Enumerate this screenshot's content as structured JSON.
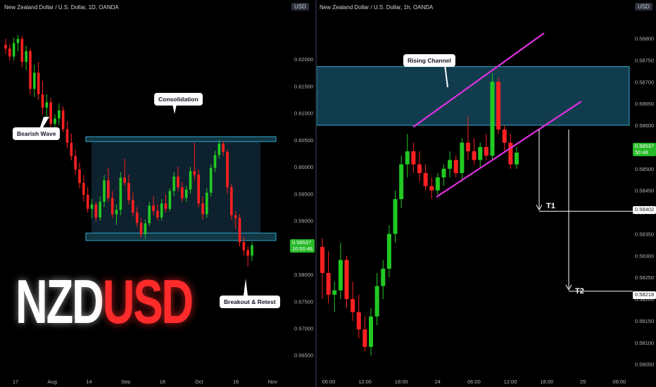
{
  "left_chart": {
    "header": "New Zealand Dollar / U.S. Dollar, 1D, OANDA",
    "currency_button": "USD",
    "price_tag": "0.58537",
    "countdown": "10:50:48",
    "logo_white": "NZD",
    "logo_red": "USD",
    "callouts": {
      "bearish": "Bearish Wave",
      "consolidation": "Consolidation",
      "breakout": "Breakout & Retest"
    }
  },
  "right_chart": {
    "header": "New Zealand Dollar / U.S. Dollar, 1h, OANDA",
    "currency_button": "USD",
    "price_tag": "0.58537",
    "countdown": "50:48",
    "callout_channel": "Rising Channel",
    "t1_label": "T1",
    "t2_label": "T2",
    "t1_tag": "0.58402",
    "t2_tag": "0.58218"
  },
  "chart_data": [
    {
      "type": "candlestick",
      "symbol": "NZDUSD",
      "timeframe": "1D",
      "y_ticks": [
        "0.62000",
        "0.61500",
        "0.61000",
        "0.60500",
        "0.60000",
        "0.59500",
        "0.59000",
        "0.58500",
        "0.58000",
        "0.57500",
        "0.57000",
        "0.56500"
      ],
      "ylim": [
        0.563,
        0.625
      ],
      "x_ticks": [
        "17",
        "Aug",
        "14",
        "Sep",
        "18",
        "Oct",
        "16",
        "Nov"
      ],
      "zones": [
        {
          "name": "resistance",
          "low": 0.6047,
          "high": 0.6056
        },
        {
          "name": "support",
          "low": 0.5863,
          "high": 0.5877
        }
      ],
      "candles_ohlc": [
        [
          0.6227,
          0.6238,
          0.621,
          0.622
        ],
        [
          0.622,
          0.6228,
          0.6197,
          0.6205
        ],
        [
          0.6205,
          0.624,
          0.6198,
          0.623
        ],
        [
          0.623,
          0.6245,
          0.6215,
          0.6238
        ],
        [
          0.6238,
          0.6243,
          0.6185,
          0.6195
        ],
        [
          0.6195,
          0.6225,
          0.618,
          0.6215
        ],
        [
          0.6215,
          0.622,
          0.6135,
          0.6145
        ],
        [
          0.6145,
          0.619,
          0.613,
          0.6175
        ],
        [
          0.6175,
          0.6195,
          0.6125,
          0.6135
        ],
        [
          0.6135,
          0.616,
          0.6098,
          0.611
        ],
        [
          0.611,
          0.6135,
          0.6092,
          0.612
        ],
        [
          0.612,
          0.6128,
          0.6072,
          0.608
        ],
        [
          0.608,
          0.6098,
          0.6055,
          0.609
        ],
        [
          0.609,
          0.6118,
          0.6078,
          0.6105
        ],
        [
          0.6105,
          0.6112,
          0.6065,
          0.607
        ],
        [
          0.607,
          0.6085,
          0.6035,
          0.6045
        ],
        [
          0.6045,
          0.6062,
          0.6012,
          0.602
        ],
        [
          0.602,
          0.6032,
          0.5985,
          0.5995
        ],
        [
          0.5995,
          0.6008,
          0.596,
          0.597
        ],
        [
          0.597,
          0.5985,
          0.5935,
          0.5948
        ],
        [
          0.5948,
          0.5962,
          0.5915,
          0.5922
        ],
        [
          0.5922,
          0.594,
          0.5905,
          0.593
        ],
        [
          0.593,
          0.5935,
          0.5898,
          0.5906
        ],
        [
          0.5906,
          0.5945,
          0.59,
          0.5935
        ],
        [
          0.5935,
          0.5985,
          0.5925,
          0.5975
        ],
        [
          0.5975,
          0.5998,
          0.5935,
          0.5942
        ],
        [
          0.5942,
          0.5955,
          0.5905,
          0.5912
        ],
        [
          0.5912,
          0.593,
          0.5892,
          0.592
        ],
        [
          0.592,
          0.599,
          0.591,
          0.598
        ],
        [
          0.598,
          0.6015,
          0.5965,
          0.597
        ],
        [
          0.597,
          0.5985,
          0.593,
          0.5938
        ],
        [
          0.5938,
          0.5952,
          0.5908,
          0.5915
        ],
        [
          0.5915,
          0.5925,
          0.5888,
          0.5896
        ],
        [
          0.5896,
          0.5905,
          0.5868,
          0.5875
        ],
        [
          0.5875,
          0.5902,
          0.5866,
          0.5895
        ],
        [
          0.5895,
          0.5935,
          0.589,
          0.5928
        ],
        [
          0.5928,
          0.5945,
          0.591,
          0.5918
        ],
        [
          0.5918,
          0.593,
          0.59,
          0.5906
        ],
        [
          0.5906,
          0.594,
          0.59,
          0.5932
        ],
        [
          0.5932,
          0.5948,
          0.5915,
          0.5922
        ],
        [
          0.5922,
          0.596,
          0.5918,
          0.5955
        ],
        [
          0.5955,
          0.599,
          0.5945,
          0.5982
        ],
        [
          0.5982,
          0.6,
          0.5955,
          0.5962
        ],
        [
          0.5962,
          0.5972,
          0.5935,
          0.5942
        ],
        [
          0.5942,
          0.5965,
          0.5935,
          0.5958
        ],
        [
          0.5958,
          0.6,
          0.595,
          0.5992
        ],
        [
          0.5992,
          0.6045,
          0.5975,
          0.5985
        ],
        [
          0.5985,
          0.5995,
          0.5925,
          0.5932
        ],
        [
          0.5932,
          0.5945,
          0.5902,
          0.5912
        ],
        [
          0.5912,
          0.596,
          0.5905,
          0.5952
        ],
        [
          0.5952,
          0.6005,
          0.5945,
          0.5998
        ],
        [
          0.5998,
          0.603,
          0.599,
          0.6022
        ],
        [
          0.6022,
          0.605,
          0.6015,
          0.6043
        ],
        [
          0.6043,
          0.6048,
          0.602,
          0.6028
        ],
        [
          0.6028,
          0.6032,
          0.595,
          0.5962
        ],
        [
          0.5962,
          0.5968,
          0.5902,
          0.591
        ],
        [
          0.591,
          0.5918,
          0.5885,
          0.5905
        ],
        [
          0.5905,
          0.5912,
          0.5852,
          0.586
        ],
        [
          0.586,
          0.587,
          0.5835,
          0.5845
        ],
        [
          0.5845,
          0.5852,
          0.5815,
          0.5835
        ],
        [
          0.5835,
          0.586,
          0.5825,
          0.5854
        ]
      ]
    },
    {
      "type": "candlestick",
      "symbol": "NZDUSD",
      "timeframe": "1h",
      "y_ticks": [
        "0.58800",
        "0.58750",
        "0.58700",
        "0.58650",
        "0.58600",
        "0.58550",
        "0.58500",
        "0.58450",
        "0.58400",
        "0.58350",
        "0.58300",
        "0.58250",
        "0.58200",
        "0.58150",
        "0.58100",
        "0.58050"
      ],
      "ylim": [
        0.5803,
        0.5883
      ],
      "x_ticks": [
        "06:00",
        "12:00",
        "18:00",
        "24",
        "06:00",
        "12:00",
        "18:00",
        "25",
        "06:00"
      ],
      "zones": [
        {
          "name": "supply",
          "low": 0.586,
          "high": 0.58735
        }
      ],
      "channel": {
        "upper": [
          [
            0.58596,
            0.58812
          ]
        ],
        "lower": [
          [
            0.58435,
            0.58655
          ]
        ]
      },
      "targets": [
        {
          "label": "T1",
          "price": 0.58402
        },
        {
          "label": "T2",
          "price": 0.58218
        }
      ],
      "candles_ohlc": [
        [
          0.5832,
          0.5834,
          0.582,
          0.5826
        ],
        [
          0.5826,
          0.5831,
          0.5819,
          0.5821
        ],
        [
          0.5821,
          0.5824,
          0.5817,
          0.5822
        ],
        [
          0.5822,
          0.5833,
          0.582,
          0.5829
        ],
        [
          0.5829,
          0.583,
          0.5818,
          0.582
        ],
        [
          0.582,
          0.5824,
          0.5815,
          0.5817
        ],
        [
          0.5817,
          0.5821,
          0.5811,
          0.5813
        ],
        [
          0.5813,
          0.5816,
          0.5808,
          0.5809
        ],
        [
          0.5809,
          0.5818,
          0.5807,
          0.5816
        ],
        [
          0.5816,
          0.5826,
          0.5814,
          0.5823
        ],
        [
          0.5823,
          0.5829,
          0.582,
          0.5827
        ],
        [
          0.5827,
          0.5837,
          0.5825,
          0.5835
        ],
        [
          0.5835,
          0.5845,
          0.5833,
          0.5843
        ],
        [
          0.5843,
          0.5853,
          0.5841,
          0.5851
        ],
        [
          0.5851,
          0.5858,
          0.5848,
          0.5854
        ],
        [
          0.5854,
          0.5856,
          0.5849,
          0.5851
        ],
        [
          0.5851,
          0.5854,
          0.5847,
          0.5849
        ],
        [
          0.5849,
          0.5851,
          0.5845,
          0.5846
        ],
        [
          0.5846,
          0.5848,
          0.5843,
          0.5845
        ],
        [
          0.5845,
          0.5849,
          0.5844,
          0.5848
        ],
        [
          0.5848,
          0.5851,
          0.5846,
          0.585
        ],
        [
          0.585,
          0.5854,
          0.5848,
          0.5852
        ],
        [
          0.5852,
          0.5853,
          0.5848,
          0.5849
        ],
        [
          0.5849,
          0.5857,
          0.5847,
          0.5856
        ],
        [
          0.5856,
          0.5862,
          0.5852,
          0.5854
        ],
        [
          0.5854,
          0.5857,
          0.5851,
          0.5852
        ],
        [
          0.5852,
          0.5856,
          0.585,
          0.5855
        ],
        [
          0.5855,
          0.5858,
          0.5852,
          0.5853
        ],
        [
          0.5853,
          0.5872,
          0.5852,
          0.587
        ],
        [
          0.587,
          0.5871,
          0.5858,
          0.5859
        ],
        [
          0.5859,
          0.586,
          0.5854,
          0.5856
        ],
        [
          0.5856,
          0.5858,
          0.585,
          0.5851
        ],
        [
          0.5851,
          0.5855,
          0.585,
          0.58537
        ]
      ]
    }
  ]
}
